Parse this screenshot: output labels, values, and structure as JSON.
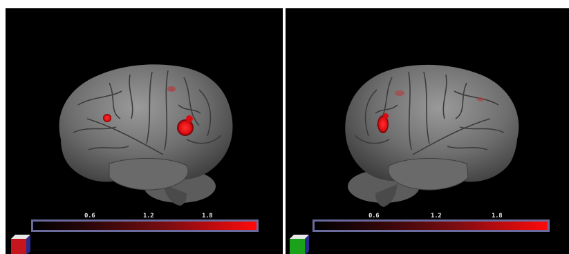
{
  "panels": [
    {
      "view": "left-lateral",
      "colorbar": {
        "ticks": [
          "0.6",
          "1.2",
          "1.8"
        ],
        "color_low": "#000000",
        "color_high": "#ff0a0a"
      },
      "orientation_cube": {
        "front_face": "#c4161c",
        "top_face": "#e8e8e8",
        "side_face": "#2a2a8c"
      },
      "activations": 3
    },
    {
      "view": "right-lateral",
      "colorbar": {
        "ticks": [
          "0.6",
          "1.2",
          "1.8"
        ],
        "color_low": "#000000",
        "color_high": "#ff0a0a"
      },
      "orientation_cube": {
        "front_face": "#1aa31a",
        "top_face": "#e8e8e8",
        "side_face": "#2a2a8c"
      },
      "activations": 3
    }
  ]
}
